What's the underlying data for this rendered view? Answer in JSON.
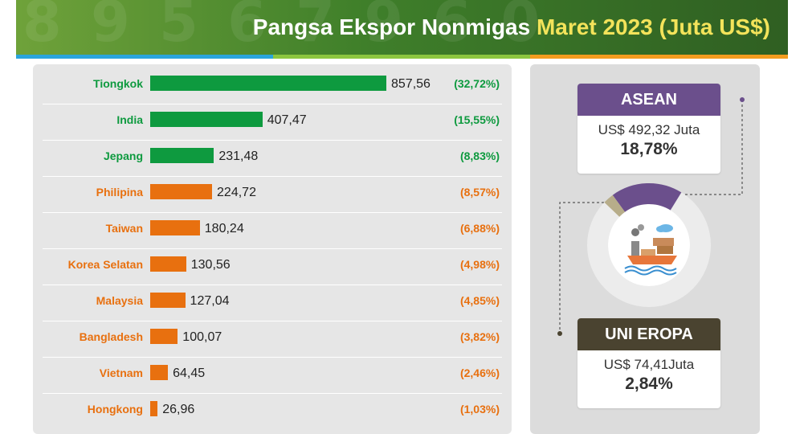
{
  "header": {
    "title_main": "Pangsa Ekspor Nonmigas",
    "title_highlight": "Maret 2023 (Juta US$)"
  },
  "colors": {
    "green": "#0e9a3f",
    "orange": "#e8700f",
    "asean_purple": "#6b4f8c",
    "eu_brown": "#4a4330",
    "stripe_blue": "#2aa5dc",
    "stripe_green": "#8cc63f",
    "stripe_orange": "#f39c1f"
  },
  "chart_data": {
    "type": "bar",
    "orientation": "horizontal",
    "title": "",
    "xlabel": "",
    "ylabel": "",
    "categories": [
      "Tiongkok",
      "India",
      "Jepang",
      "Philipina",
      "Taiwan",
      "Korea Selatan",
      "Malaysia",
      "Bangladesh",
      "Vietnam",
      "Hongkong"
    ],
    "values": [
      857.56,
      407.47,
      231.48,
      224.72,
      180.24,
      130.56,
      127.04,
      100.07,
      64.45,
      26.96
    ],
    "value_labels": [
      "857,56",
      "407,47",
      "231,48",
      "224,72",
      "180,24",
      "130,56",
      "127,04",
      "100,07",
      "64,45",
      "26,96"
    ],
    "shares": [
      "(32,72%)",
      "(15,55%)",
      "(8,83%)",
      "(8,57%)",
      "(6,88%)",
      "(4,98%)",
      "(4,85%)",
      "(3,82%)",
      "(2,46%)",
      "(1,03%)"
    ],
    "bar_colors": [
      "green",
      "green",
      "green",
      "orange",
      "orange",
      "orange",
      "orange",
      "orange",
      "orange",
      "orange"
    ],
    "xlim": [
      0,
      857.56
    ],
    "grid": false,
    "legend": "none"
  },
  "asean": {
    "label": "ASEAN",
    "amount": "US$ 492,32 Juta",
    "percent": "18,78%",
    "share": 0.1878
  },
  "eu": {
    "label": "UNI EROPA",
    "amount": "US$ 74,41Juta",
    "percent": "2,84%",
    "share": 0.0284
  }
}
